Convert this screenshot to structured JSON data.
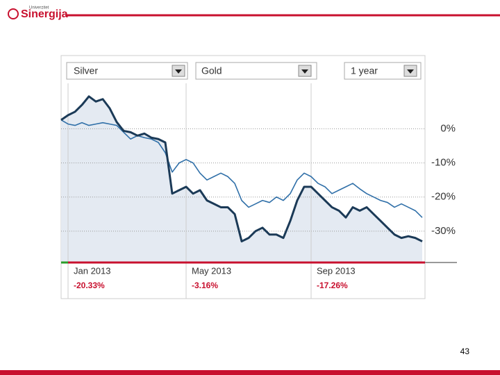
{
  "logo": {
    "small": "Univerzitet",
    "name": "Sinergija"
  },
  "page_number": "43",
  "chart_data": {
    "type": "line",
    "period": "1 year",
    "categories": [
      null,
      "Jan 2013",
      null,
      null,
      null,
      null,
      null,
      null,
      null,
      null,
      null,
      null,
      null,
      null,
      null,
      null,
      null,
      null,
      "May 2013",
      null,
      null,
      null,
      null,
      null,
      null,
      null,
      null,
      null,
      null,
      null,
      null,
      null,
      null,
      null,
      null,
      null,
      "Sep 2013",
      null,
      null,
      null,
      null,
      null,
      null,
      null,
      null,
      null,
      null,
      null,
      null,
      null,
      null,
      null,
      null
    ],
    "category_changes": [
      null,
      "-20.33%",
      null,
      null,
      null,
      null,
      null,
      null,
      null,
      null,
      null,
      null,
      null,
      null,
      null,
      null,
      null,
      null,
      "-3.16%",
      null,
      null,
      null,
      null,
      null,
      null,
      null,
      null,
      null,
      null,
      null,
      null,
      null,
      null,
      null,
      null,
      null,
      "-17.26%",
      null,
      null,
      null,
      null,
      null,
      null,
      null,
      null,
      null,
      null,
      null,
      null,
      null,
      null,
      null,
      null
    ],
    "series": [
      {
        "name": "Silver",
        "color": "#1b3a57",
        "values": [
          2.6,
          4,
          5,
          7,
          9.5,
          8,
          8.7,
          6,
          2,
          -0.6,
          -1,
          -2,
          -1.4,
          -2.6,
          -3,
          -4,
          -19,
          -18,
          -17,
          -19,
          -18,
          -21,
          -22,
          -23,
          -23,
          -25,
          -33,
          -32,
          -30,
          -29,
          -31,
          -31,
          -32,
          -27,
          -21,
          -17,
          -17,
          -19,
          -21,
          -23,
          -24,
          -26,
          -23,
          -24,
          -23,
          -25,
          -27,
          -29,
          -31,
          -32,
          -31.5,
          -32,
          -33
        ]
      },
      {
        "name": "Gold",
        "color": "#2f6fa8",
        "values": [
          2.6,
          1.4,
          1,
          1.8,
          1,
          1.4,
          1.8,
          1.4,
          1,
          -1,
          -3,
          -2,
          -2.6,
          -3,
          -4,
          -7,
          -12.7,
          -10,
          -9,
          -10,
          -13,
          -15,
          -14,
          -13,
          -14,
          -16,
          -21,
          -23,
          -22,
          -21,
          -21.6,
          -20,
          -21,
          -19,
          -15,
          -13,
          -14,
          -16,
          -17,
          -19,
          -18,
          -17,
          -16,
          -17.6,
          -19,
          -20,
          -21,
          -21.6,
          -23,
          -22,
          -23,
          -24,
          -26
        ]
      }
    ],
    "ylim": [
      -39.2,
      11.3
    ],
    "yticks": [
      {
        "value": 0,
        "label": "0%"
      },
      {
        "value": -10,
        "label": "-10%"
      },
      {
        "value": -20,
        "label": "-20%"
      },
      {
        "value": -30,
        "label": "-30%"
      }
    ],
    "grid": true
  }
}
